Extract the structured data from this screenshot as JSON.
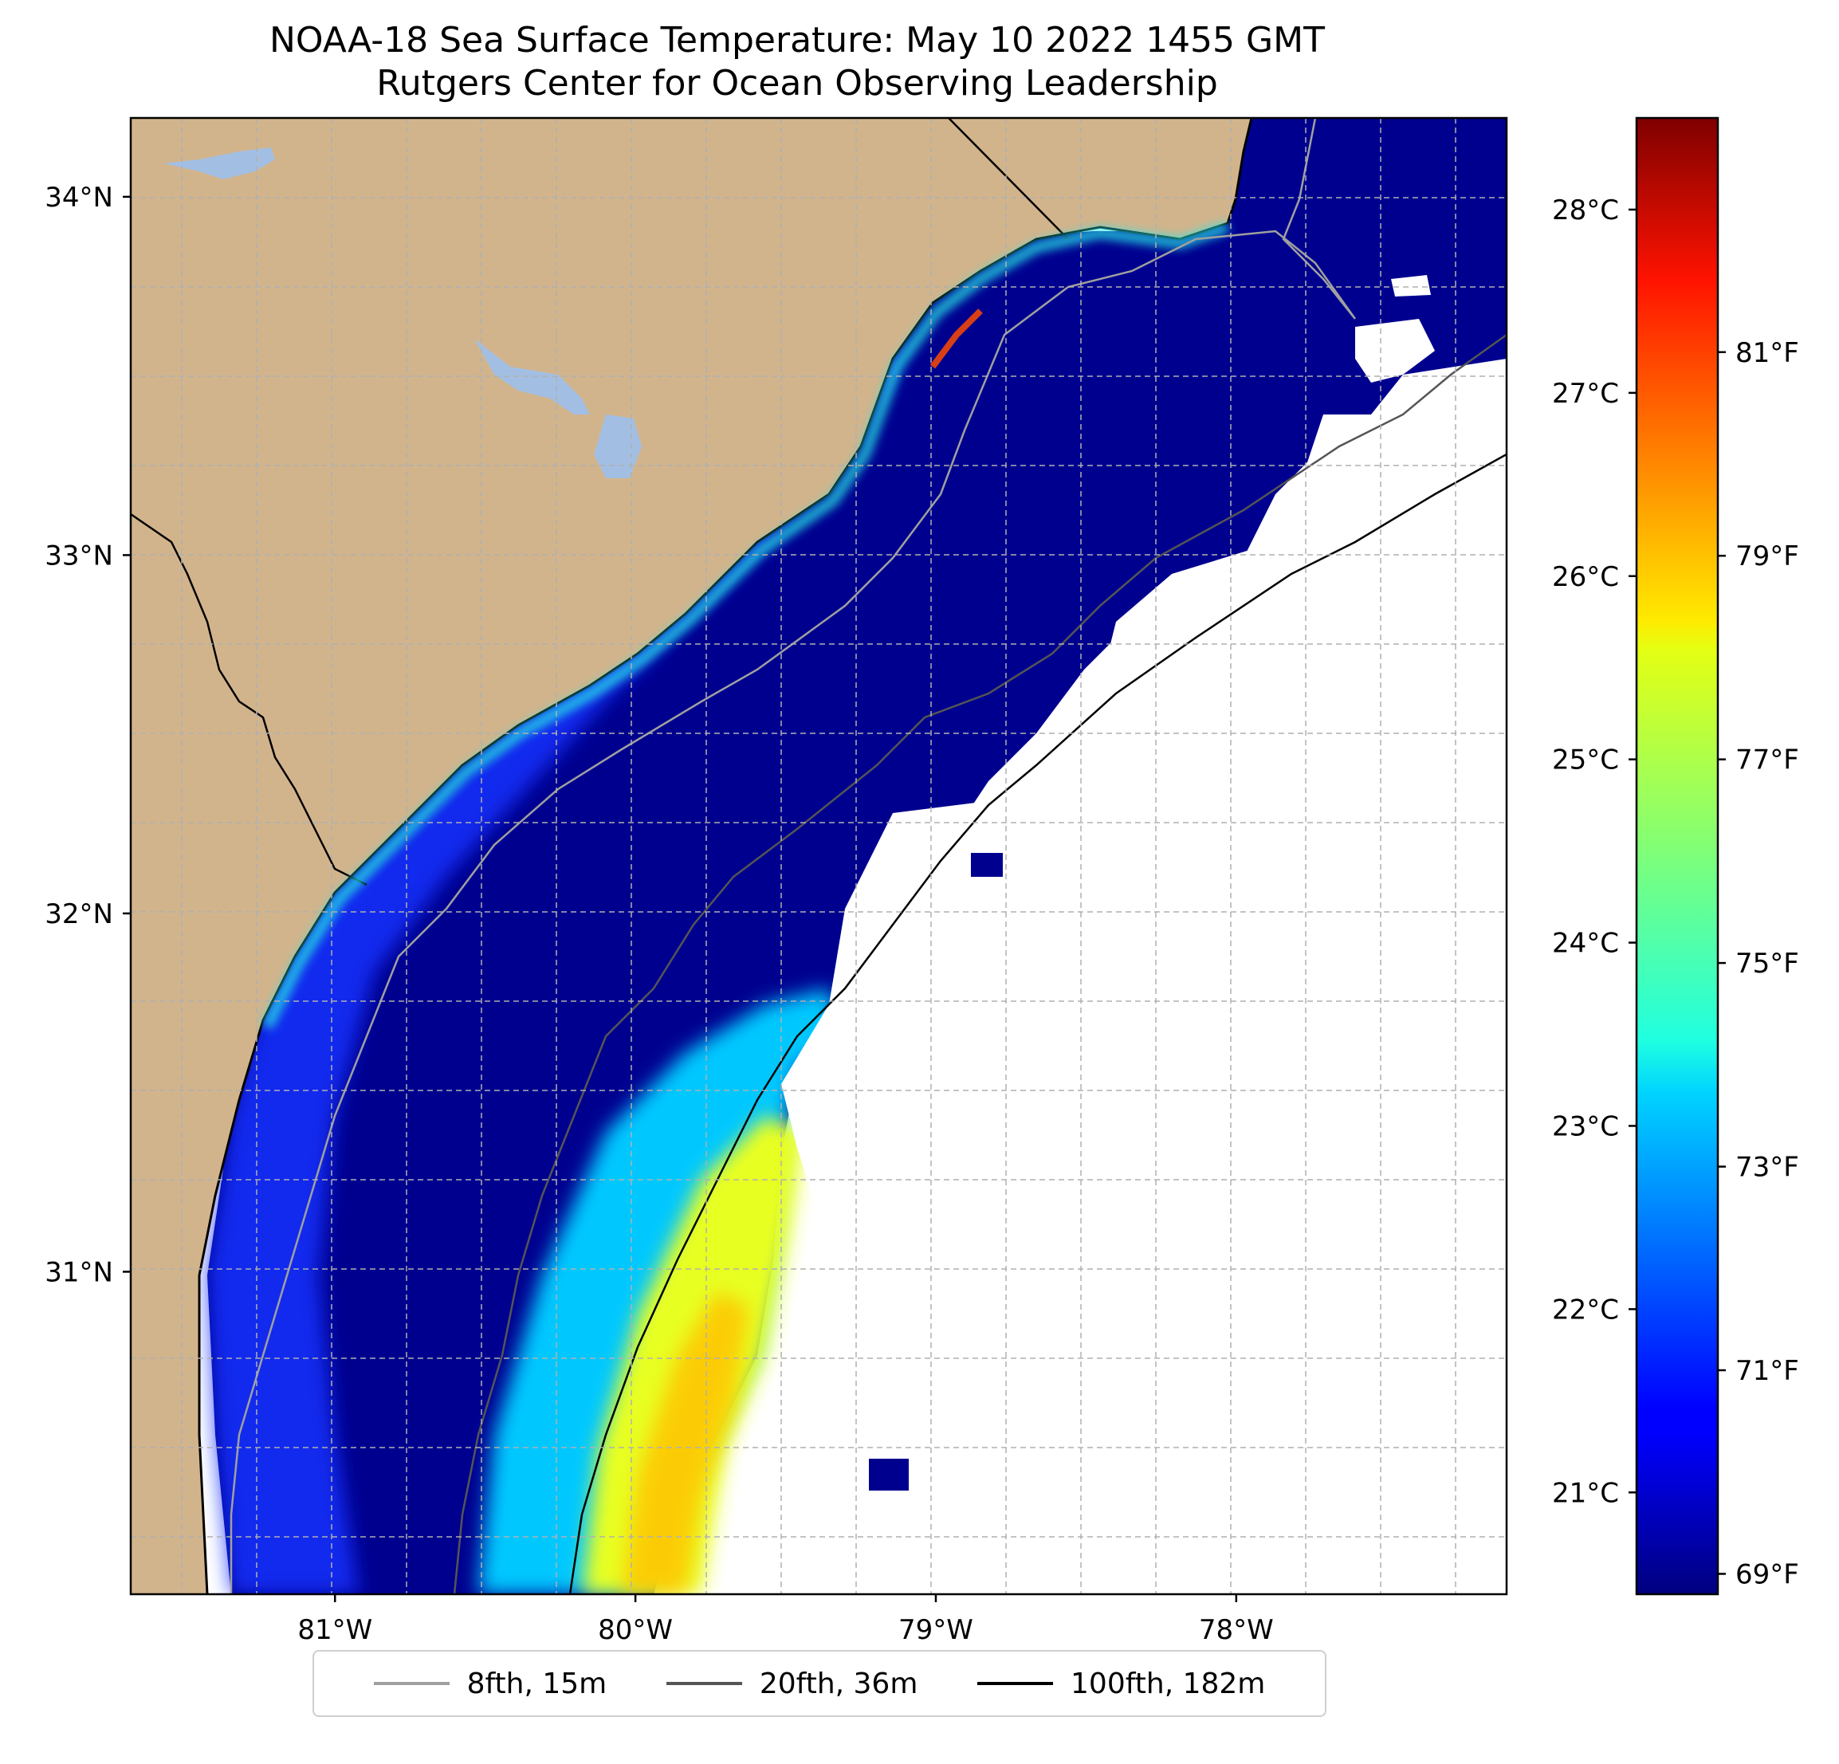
{
  "title": {
    "line1": "NOAA-18 Sea Surface Temperature: May 10 2022 1455 GMT",
    "line2": "Rutgers Center for Ocean Observing Leadership"
  },
  "map": {
    "lat_range": [
      30.1,
      34.22
    ],
    "lon_range": [
      -81.68,
      -77.1
    ],
    "lat_ticks": [
      {
        "value": 31,
        "label": "31°N"
      },
      {
        "value": 32,
        "label": "32°N"
      },
      {
        "value": 33,
        "label": "33°N"
      },
      {
        "value": 34,
        "label": "34°N"
      }
    ],
    "lon_ticks": [
      {
        "value": -81,
        "label": "81°W"
      },
      {
        "value": -80,
        "label": "80°W"
      },
      {
        "value": -79,
        "label": "79°W"
      },
      {
        "value": -78,
        "label": "78°W"
      }
    ],
    "colors": {
      "land": "#d2b48c",
      "lakes": "#a2bfe3",
      "cold_sst": "#00008f",
      "no_data": "#ffffff",
      "grid": "#b0b0b0"
    }
  },
  "colorbar": {
    "celsius_ticks": [
      {
        "value": 21,
        "label": "21°C"
      },
      {
        "value": 22,
        "label": "22°C"
      },
      {
        "value": 23,
        "label": "23°C"
      },
      {
        "value": 24,
        "label": "24°C"
      },
      {
        "value": 25,
        "label": "25°C"
      },
      {
        "value": 26,
        "label": "26°C"
      },
      {
        "value": 27,
        "label": "27°C"
      },
      {
        "value": 28,
        "label": "28°C"
      }
    ],
    "fahrenheit_ticks": [
      {
        "value": 69,
        "label": "69°F"
      },
      {
        "value": 71,
        "label": "71°F"
      },
      {
        "value": 73,
        "label": "73°F"
      },
      {
        "value": 75,
        "label": "75°F"
      },
      {
        "value": 77,
        "label": "77°F"
      },
      {
        "value": 79,
        "label": "79°F"
      },
      {
        "value": 81,
        "label": "81°F"
      }
    ],
    "range_f": [
      68.8,
      83.3
    ],
    "colormap": "jet"
  },
  "legend": {
    "items": [
      {
        "label": "8fth, 15m",
        "color": "#a0a0a0"
      },
      {
        "label": "20fth, 36m",
        "color": "#555555"
      },
      {
        "label": "100fth, 182m",
        "color": "#000000"
      }
    ]
  }
}
